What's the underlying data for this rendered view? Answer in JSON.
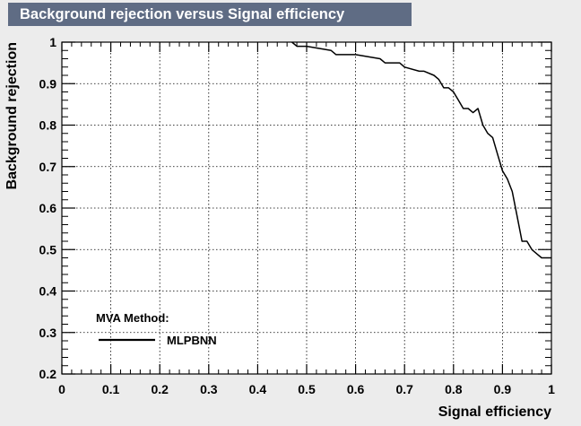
{
  "chart_data": {
    "type": "line",
    "title": "Background rejection versus Signal efficiency",
    "xlabel": "Signal efficiency",
    "ylabel": "Background rejection",
    "xlim": [
      0,
      1
    ],
    "ylim": [
      0.2,
      1
    ],
    "grid": true,
    "xticks": [
      "0",
      "0.1",
      "0.2",
      "0.3",
      "0.4",
      "0.5",
      "0.6",
      "0.7",
      "0.8",
      "0.9",
      "1"
    ],
    "yticks": [
      "0.2",
      "0.3",
      "0.4",
      "0.5",
      "0.6",
      "0.7",
      "0.8",
      "0.9",
      "1"
    ],
    "legend": {
      "header": "MVA Method:",
      "placement": "bottom-left"
    },
    "series": [
      {
        "name": "MLPBNN",
        "color": "#000000",
        "x": [
          0.47,
          0.48,
          0.5,
          0.55,
          0.56,
          0.6,
          0.65,
          0.66,
          0.69,
          0.7,
          0.73,
          0.74,
          0.76,
          0.77,
          0.78,
          0.79,
          0.8,
          0.81,
          0.82,
          0.83,
          0.84,
          0.85,
          0.86,
          0.87,
          0.88,
          0.89,
          0.9,
          0.91,
          0.92,
          0.93,
          0.94,
          0.95,
          0.96,
          0.97,
          0.98,
          0.99,
          1.0
        ],
        "y": [
          1.0,
          0.99,
          0.99,
          0.98,
          0.97,
          0.97,
          0.96,
          0.95,
          0.95,
          0.94,
          0.93,
          0.93,
          0.92,
          0.91,
          0.89,
          0.89,
          0.88,
          0.86,
          0.84,
          0.84,
          0.83,
          0.84,
          0.8,
          0.78,
          0.77,
          0.73,
          0.69,
          0.67,
          0.64,
          0.58,
          0.52,
          0.52,
          0.5,
          0.49,
          0.48,
          0.48,
          0.48
        ]
      }
    ]
  }
}
